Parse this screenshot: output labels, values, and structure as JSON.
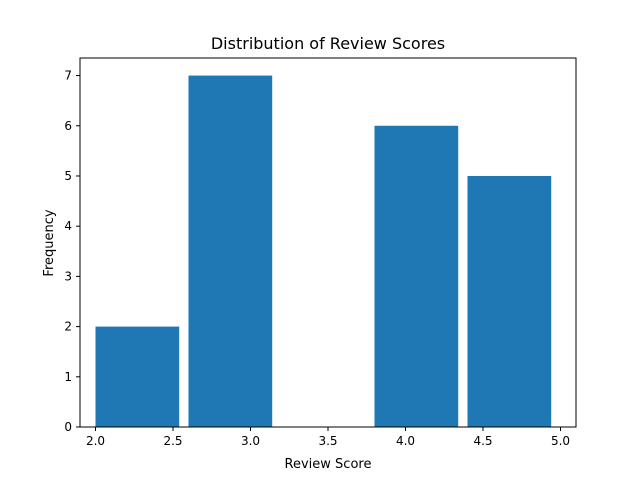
{
  "chart_data": {
    "type": "bar",
    "title": "Distribution of Review Scores",
    "xlabel": "Review Score",
    "ylabel": "Frequency",
    "xlim": [
      1.9,
      5.1
    ],
    "ylim": [
      0,
      7.35
    ],
    "bins": [
      {
        "x0": 2.0,
        "x1": 2.6,
        "count": 2
      },
      {
        "x0": 2.6,
        "x1": 3.2,
        "count": 7
      },
      {
        "x0": 3.2,
        "x1": 3.8,
        "count": 0
      },
      {
        "x0": 3.8,
        "x1": 4.4,
        "count": 6
      },
      {
        "x0": 4.4,
        "x1": 5.0,
        "count": 5
      }
    ],
    "bar_color": "#1f77b4",
    "xticks": [
      "2.0",
      "2.5",
      "3.0",
      "3.5",
      "4.0",
      "4.5",
      "5.0"
    ],
    "yticks": [
      "0",
      "1",
      "2",
      "3",
      "4",
      "5",
      "6",
      "7"
    ],
    "grid": false,
    "legend": "none"
  }
}
